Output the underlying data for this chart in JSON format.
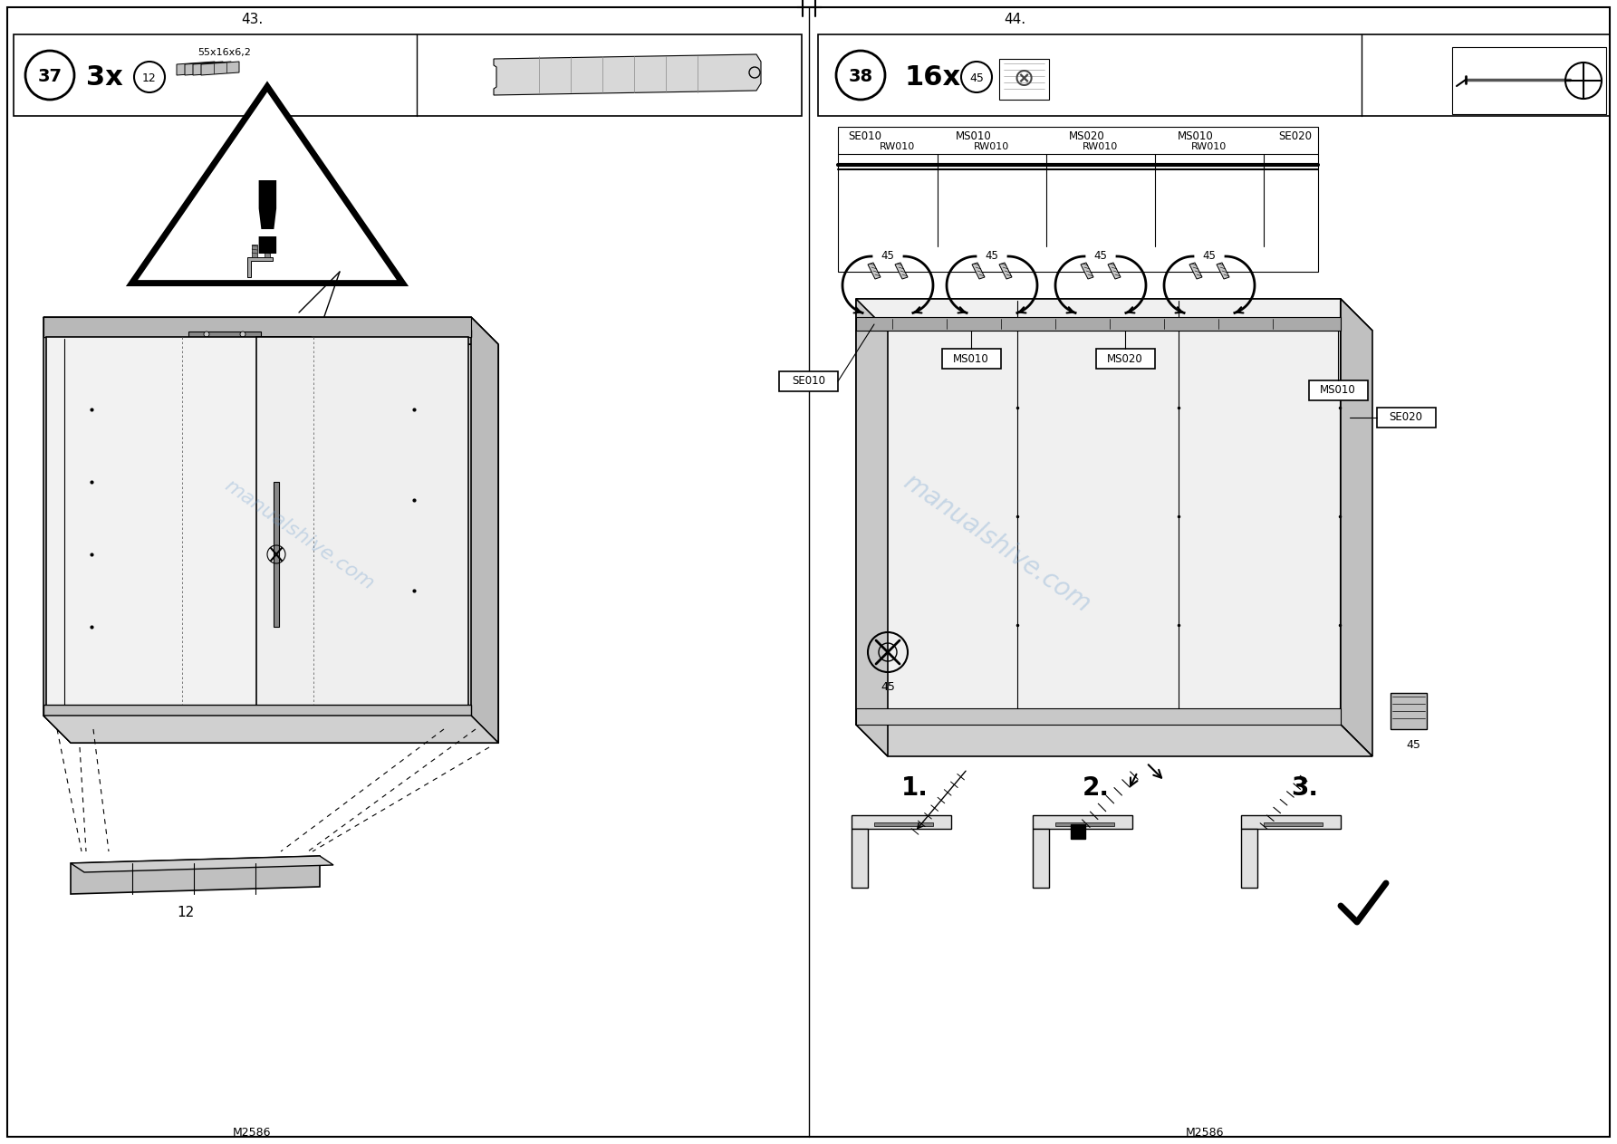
{
  "bg_color": "#ffffff",
  "line_color": "#000000",
  "page_num_left": "43.",
  "page_num_right": "44.",
  "left_step": "37",
  "left_count": "3x",
  "left_part": "12",
  "left_dim": "55x16x6,2",
  "right_step": "38",
  "right_count": "16x",
  "right_part": "45",
  "labels_top": [
    "SE010",
    "MS010",
    "MS020",
    "MS010",
    "SE020"
  ],
  "labels_rw": [
    "RW010",
    "RW010",
    "RW010",
    "RW010"
  ],
  "angle_labels": [
    "45",
    "45",
    "45",
    "45"
  ],
  "box_labels_main": [
    "SE010",
    "MS010",
    "MS020",
    "MS010",
    "SE020"
  ],
  "step_labels": [
    "1.",
    "2.",
    "3."
  ],
  "footer_text": "M2586",
  "watermark": "manualshive.com",
  "watermark_color": "#6699cc",
  "watermark_alpha": 0.3
}
